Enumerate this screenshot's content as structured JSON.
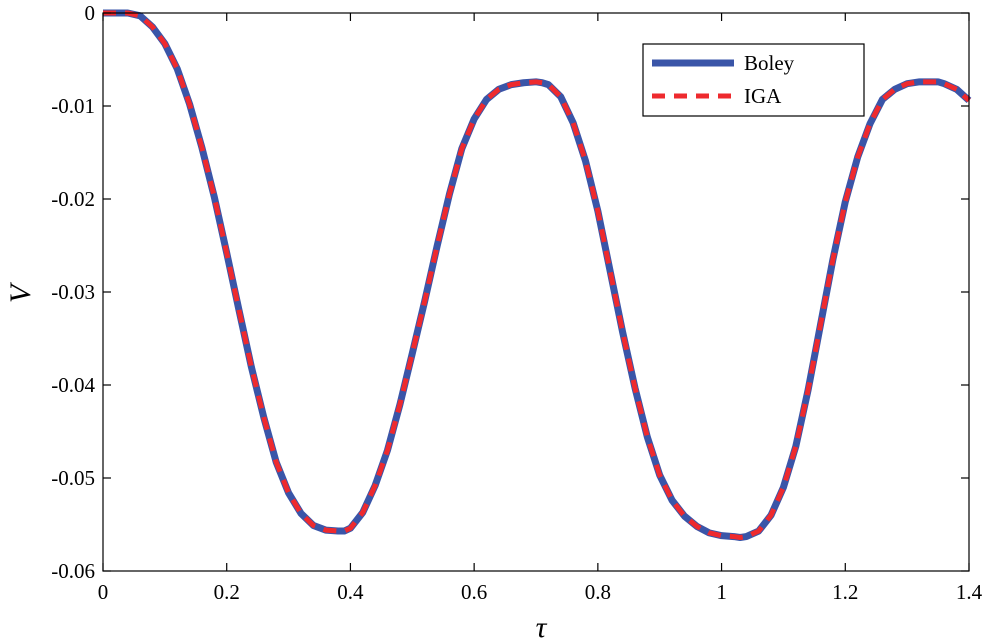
{
  "chart_data": {
    "type": "line",
    "title": "",
    "xlabel": "τ",
    "ylabel": "V",
    "xlim": [
      0,
      1.4
    ],
    "ylim": [
      -0.06,
      0
    ],
    "xticks": [
      0,
      0.2,
      0.4,
      0.6,
      0.8,
      1.0,
      1.2,
      1.4
    ],
    "xtick_labels": [
      "0",
      "0.2",
      "0.4",
      "0.6",
      "0.8",
      "1",
      "1.2",
      "1.4"
    ],
    "yticks": [
      0,
      -0.01,
      -0.02,
      -0.03,
      -0.04,
      -0.05,
      -0.06
    ],
    "ytick_labels": [
      "0",
      "-0.01",
      "-0.02",
      "-0.03",
      "-0.04",
      "-0.05",
      "-0.06"
    ],
    "grid": false,
    "legend_position": "top-right",
    "x": [
      0,
      0.02,
      0.04,
      0.06,
      0.08,
      0.1,
      0.12,
      0.14,
      0.16,
      0.18,
      0.2,
      0.22,
      0.24,
      0.26,
      0.28,
      0.3,
      0.32,
      0.34,
      0.36,
      0.38,
      0.39,
      0.4,
      0.42,
      0.44,
      0.46,
      0.48,
      0.5,
      0.52,
      0.54,
      0.56,
      0.58,
      0.6,
      0.62,
      0.64,
      0.66,
      0.68,
      0.7,
      0.71,
      0.72,
      0.74,
      0.76,
      0.78,
      0.8,
      0.82,
      0.84,
      0.86,
      0.88,
      0.9,
      0.92,
      0.94,
      0.96,
      0.98,
      1.0,
      1.02,
      1.03,
      1.04,
      1.06,
      1.08,
      1.1,
      1.12,
      1.14,
      1.16,
      1.18,
      1.2,
      1.22,
      1.24,
      1.26,
      1.28,
      1.3,
      1.32,
      1.34,
      1.35,
      1.36,
      1.38,
      1.4
    ],
    "series": [
      {
        "name": "Boley",
        "color": "#3a55a8",
        "style": "solid",
        "values": [
          0,
          0,
          0,
          -0.0003,
          -0.0015,
          -0.0033,
          -0.006,
          -0.0098,
          -0.0145,
          -0.0198,
          -0.0258,
          -0.032,
          -0.0381,
          -0.0435,
          -0.0483,
          -0.0516,
          -0.0538,
          -0.0551,
          -0.0556,
          -0.0557,
          -0.0557,
          -0.0554,
          -0.0537,
          -0.0508,
          -0.047,
          -0.0421,
          -0.0366,
          -0.031,
          -0.0251,
          -0.0195,
          -0.0146,
          -0.0114,
          -0.0093,
          -0.0082,
          -0.0077,
          -0.0075,
          -0.0074,
          -0.0075,
          -0.0077,
          -0.009,
          -0.0118,
          -0.0159,
          -0.0213,
          -0.0278,
          -0.0343,
          -0.0403,
          -0.0456,
          -0.0497,
          -0.0524,
          -0.0541,
          -0.0552,
          -0.0559,
          -0.0562,
          -0.0563,
          -0.0564,
          -0.0563,
          -0.0557,
          -0.054,
          -0.051,
          -0.0466,
          -0.0405,
          -0.0335,
          -0.0265,
          -0.0203,
          -0.0155,
          -0.0119,
          -0.0093,
          -0.0082,
          -0.0076,
          -0.0074,
          -0.0074,
          -0.0074,
          -0.0076,
          -0.0082,
          -0.0094
        ]
      },
      {
        "name": "IGA",
        "color": "#ee2a2e",
        "style": "dashed",
        "values": [
          0,
          0,
          0,
          -0.0003,
          -0.0015,
          -0.0033,
          -0.006,
          -0.0098,
          -0.0145,
          -0.0198,
          -0.0258,
          -0.032,
          -0.0381,
          -0.0435,
          -0.0483,
          -0.0516,
          -0.0538,
          -0.0551,
          -0.0556,
          -0.0557,
          -0.0557,
          -0.0554,
          -0.0537,
          -0.0508,
          -0.047,
          -0.0421,
          -0.0366,
          -0.031,
          -0.0251,
          -0.0195,
          -0.0146,
          -0.0114,
          -0.0093,
          -0.0082,
          -0.0077,
          -0.0075,
          -0.0074,
          -0.0075,
          -0.0077,
          -0.009,
          -0.0118,
          -0.0159,
          -0.0213,
          -0.0278,
          -0.0343,
          -0.0403,
          -0.0456,
          -0.0497,
          -0.0524,
          -0.0541,
          -0.0552,
          -0.0559,
          -0.0562,
          -0.0563,
          -0.0564,
          -0.0563,
          -0.0557,
          -0.054,
          -0.051,
          -0.0466,
          -0.0405,
          -0.0335,
          -0.0265,
          -0.0203,
          -0.0155,
          -0.0119,
          -0.0093,
          -0.0082,
          -0.0076,
          -0.0074,
          -0.0074,
          -0.0074,
          -0.0076,
          -0.0082,
          -0.0094
        ]
      }
    ]
  }
}
